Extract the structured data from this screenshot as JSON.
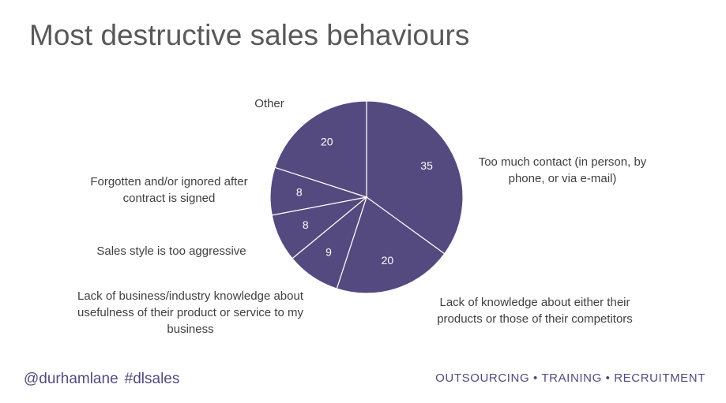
{
  "chart_data": {
    "type": "pie",
    "title": "Most destructive sales behaviours",
    "categories": [
      "Too much contact (in person, by phone, or via e-mail)",
      "Lack of knowledge about either their products or those of their competitors",
      "Lack of business/industry knowledge about usefulness of their product or service to my business",
      "Sales style is too aggressive",
      "Forgotten and/or ignored after contract is signed",
      "Other"
    ],
    "values": [
      35,
      20,
      9,
      8,
      8,
      20
    ],
    "color": "#544a7f"
  },
  "footer": {
    "handle": "@durhamlane",
    "hashtag": "#dlsales",
    "tagline": "OUTSOURCING • TRAINING • RECRUITMENT"
  }
}
